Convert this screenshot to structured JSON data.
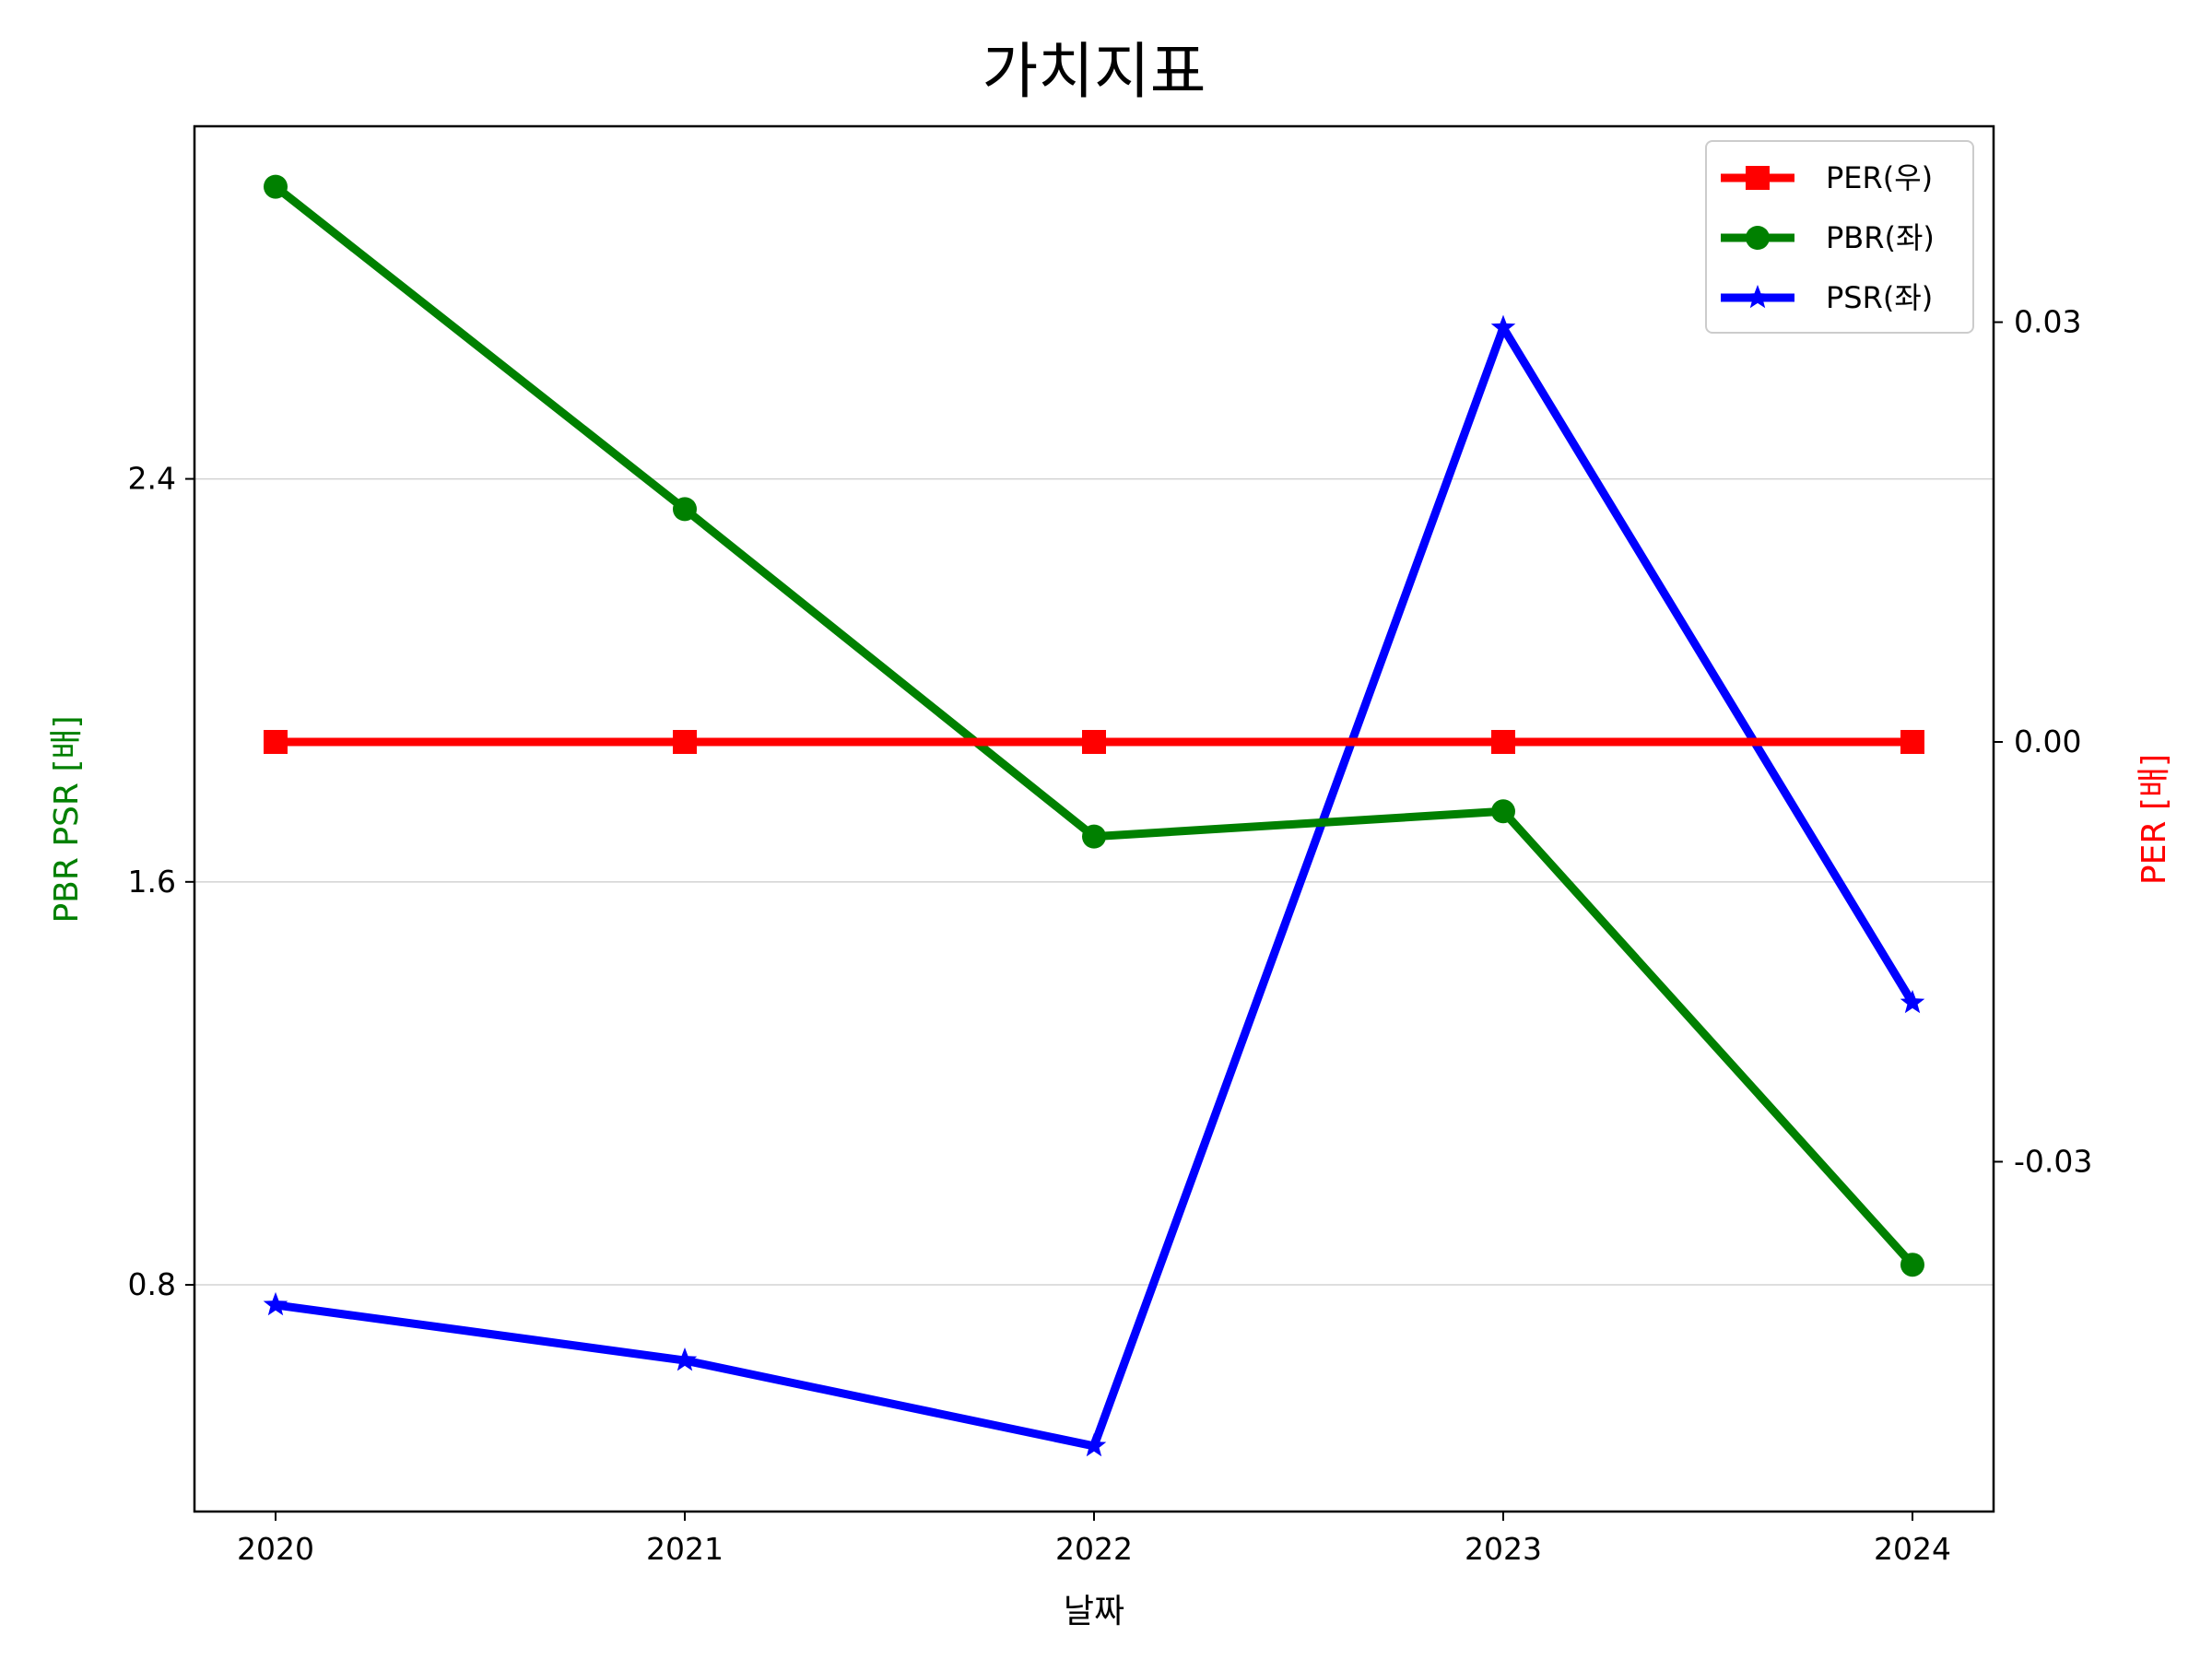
{
  "chart_data": {
    "type": "line",
    "title": "가치지표",
    "xlabel": "날짜",
    "ylabel_left": "PBR PSR [배]",
    "ylabel_right": "PER [배]",
    "ylabel_left_color": "#008000",
    "ylabel_right_color": "#ff0000",
    "categories": [
      "2020",
      "2021",
      "2022",
      "2023",
      "2024"
    ],
    "ylim_left": [
      0.35,
      3.1
    ],
    "ylim_right": [
      -0.055,
      0.044
    ],
    "yticks_left": [
      0.8,
      1.6,
      2.4
    ],
    "yticks_left_labels": [
      "0.8",
      "1.6",
      "2.4"
    ],
    "yticks_right": [
      -0.03,
      0.0,
      0.03
    ],
    "yticks_right_labels": [
      "-0.03",
      "0.00",
      "0.03"
    ],
    "grid": "horizontal",
    "legend_position": "top-right",
    "series": [
      {
        "name": "PER(우)",
        "axis": "right",
        "color": "#ff0000",
        "marker": "square",
        "values": [
          0,
          0,
          0,
          0,
          0
        ]
      },
      {
        "name": "PBR(좌)",
        "axis": "left",
        "color": "#008000",
        "marker": "circle",
        "values": [
          2.98,
          2.34,
          1.69,
          1.74,
          0.84
        ]
      },
      {
        "name": "PSR(좌)",
        "axis": "left",
        "color": "#0000ff",
        "marker": "star",
        "values": [
          0.76,
          0.65,
          0.48,
          2.7,
          1.36
        ]
      }
    ]
  }
}
